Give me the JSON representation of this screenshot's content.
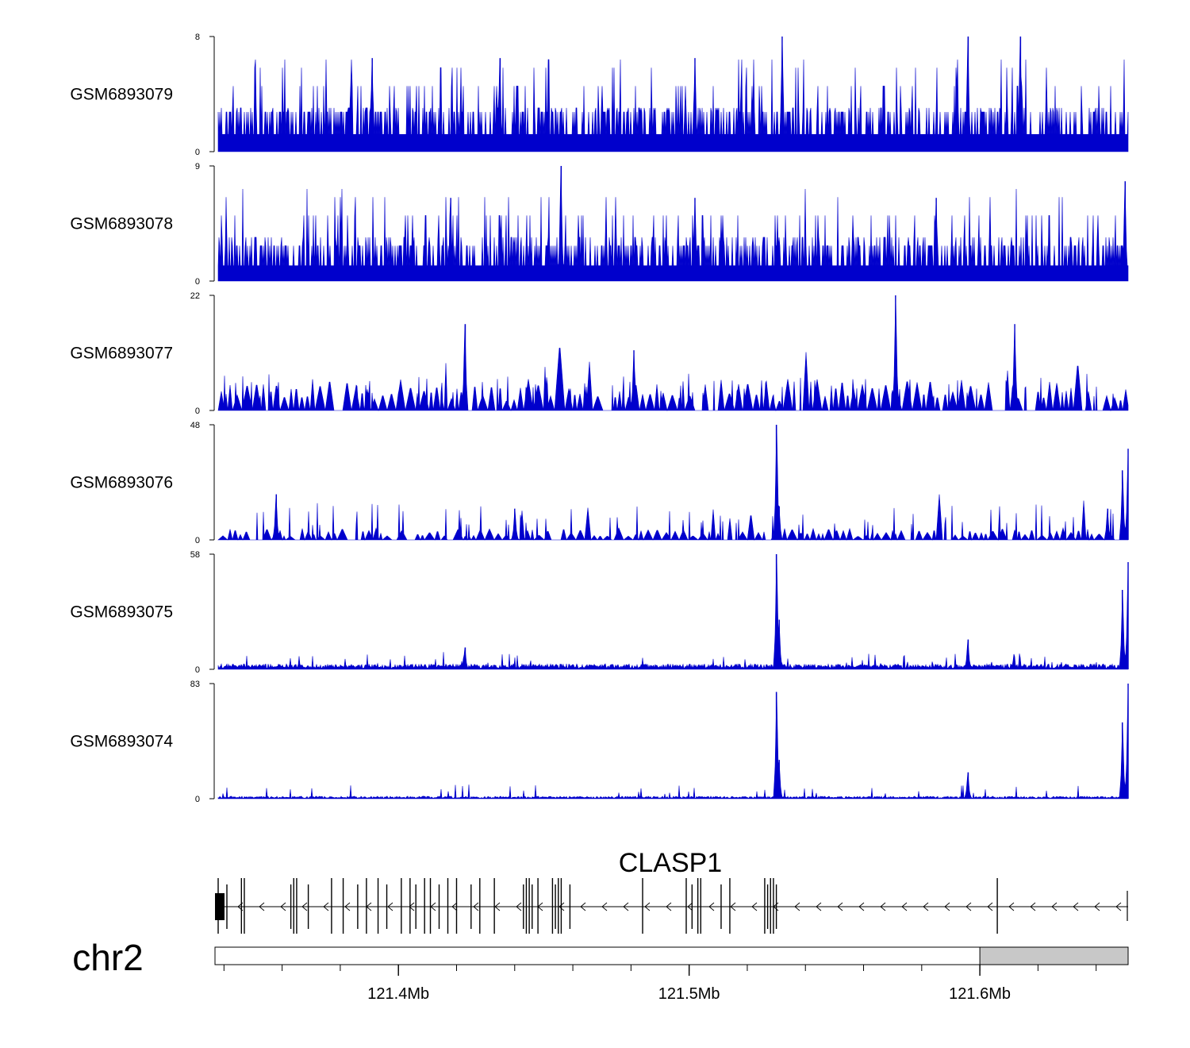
{
  "chart_data": {
    "type": "area",
    "title": "",
    "xlabel": "",
    "ylabel": "",
    "color": "#0000cc",
    "x_range_mb": [
      121.338,
      121.651
    ],
    "series": [
      {
        "name": "GSM6893079",
        "ylim": [
          0,
          8
        ],
        "ytick_labels": [
          "8",
          "0"
        ],
        "noise": "dense-spiky",
        "baseline": 1.2,
        "peaks": [
          {
            "x": 121.391,
            "y": 6.5
          },
          {
            "x": 121.532,
            "y": 8
          },
          {
            "x": 121.596,
            "y": 8
          },
          {
            "x": 121.614,
            "y": 8
          },
          {
            "x": 121.435,
            "y": 6.5
          },
          {
            "x": 121.502,
            "y": 6.5
          }
        ]
      },
      {
        "name": "GSM6893078",
        "ylim": [
          0,
          9
        ],
        "ytick_labels": [
          "9",
          "0"
        ],
        "noise": "dense-spiky",
        "baseline": 1.2,
        "peaks": [
          {
            "x": 121.456,
            "y": 9
          },
          {
            "x": 121.65,
            "y": 7.8
          },
          {
            "x": 121.502,
            "y": 6.5
          },
          {
            "x": 121.585,
            "y": 6.5
          },
          {
            "x": 121.418,
            "y": 6.5
          }
        ]
      },
      {
        "name": "GSM6893077",
        "ylim": [
          0,
          22
        ],
        "ytick_labels": [
          "22",
          "0"
        ],
        "noise": "sparse-triangles",
        "baseline": 3,
        "peaks": [
          {
            "x": 121.571,
            "y": 22
          },
          {
            "x": 121.423,
            "y": 16.5
          },
          {
            "x": 121.481,
            "y": 11.5
          },
          {
            "x": 121.612,
            "y": 16.5
          }
        ]
      },
      {
        "name": "GSM6893076",
        "ylim": [
          0,
          48
        ],
        "ytick_labels": [
          "48",
          "0"
        ],
        "noise": "sparse-triangles",
        "baseline": 2.5,
        "peaks": [
          {
            "x": 121.53,
            "y": 48
          },
          {
            "x": 121.531,
            "y": 14
          },
          {
            "x": 121.651,
            "y": 38
          },
          {
            "x": 121.649,
            "y": 29
          },
          {
            "x": 121.44,
            "y": 13
          },
          {
            "x": 121.358,
            "y": 19
          },
          {
            "x": 121.644,
            "y": 13
          }
        ]
      },
      {
        "name": "GSM6893075",
        "ylim": [
          0,
          58
        ],
        "ytick_labels": [
          "58",
          "0"
        ],
        "noise": "low",
        "baseline": 1.5,
        "peaks": [
          {
            "x": 121.53,
            "y": 58
          },
          {
            "x": 121.531,
            "y": 25
          },
          {
            "x": 121.651,
            "y": 54
          },
          {
            "x": 121.649,
            "y": 40
          },
          {
            "x": 121.596,
            "y": 15
          },
          {
            "x": 121.423,
            "y": 11
          }
        ]
      },
      {
        "name": "GSM6893074",
        "ylim": [
          0,
          83
        ],
        "ytick_labels": [
          "83",
          "0"
        ],
        "noise": "low",
        "baseline": 1,
        "peaks": [
          {
            "x": 121.53,
            "y": 77
          },
          {
            "x": 121.531,
            "y": 28
          },
          {
            "x": 121.651,
            "y": 83
          },
          {
            "x": 121.649,
            "y": 55
          },
          {
            "x": 121.596,
            "y": 19
          }
        ]
      }
    ],
    "gene": {
      "name": "CLASP1",
      "strand": "-",
      "exons_mb": [
        121.338,
        121.341,
        121.346,
        121.347,
        121.363,
        121.364,
        121.365,
        121.369,
        121.377,
        121.381,
        121.386,
        121.389,
        121.393,
        121.396,
        121.401,
        121.404,
        121.406,
        121.409,
        121.411,
        121.414,
        121.417,
        121.42,
        121.425,
        121.428,
        121.433,
        121.443,
        121.444,
        121.445,
        121.446,
        121.448,
        121.453,
        121.454,
        121.455,
        121.456,
        121.459,
        121.484,
        121.499,
        121.501,
        121.503,
        121.504,
        121.511,
        121.514,
        121.526,
        121.527,
        121.528,
        121.529,
        121.53,
        121.606
      ]
    },
    "chromosome": "chr2",
    "grey_region_start_mb": 121.6,
    "x_tick_labels": [
      "121.4Mb",
      "121.5Mb",
      "121.6Mb"
    ],
    "x_tick_values_mb": [
      121.4,
      121.5,
      121.6
    ],
    "minor_tick_step_mb": 0.02
  }
}
